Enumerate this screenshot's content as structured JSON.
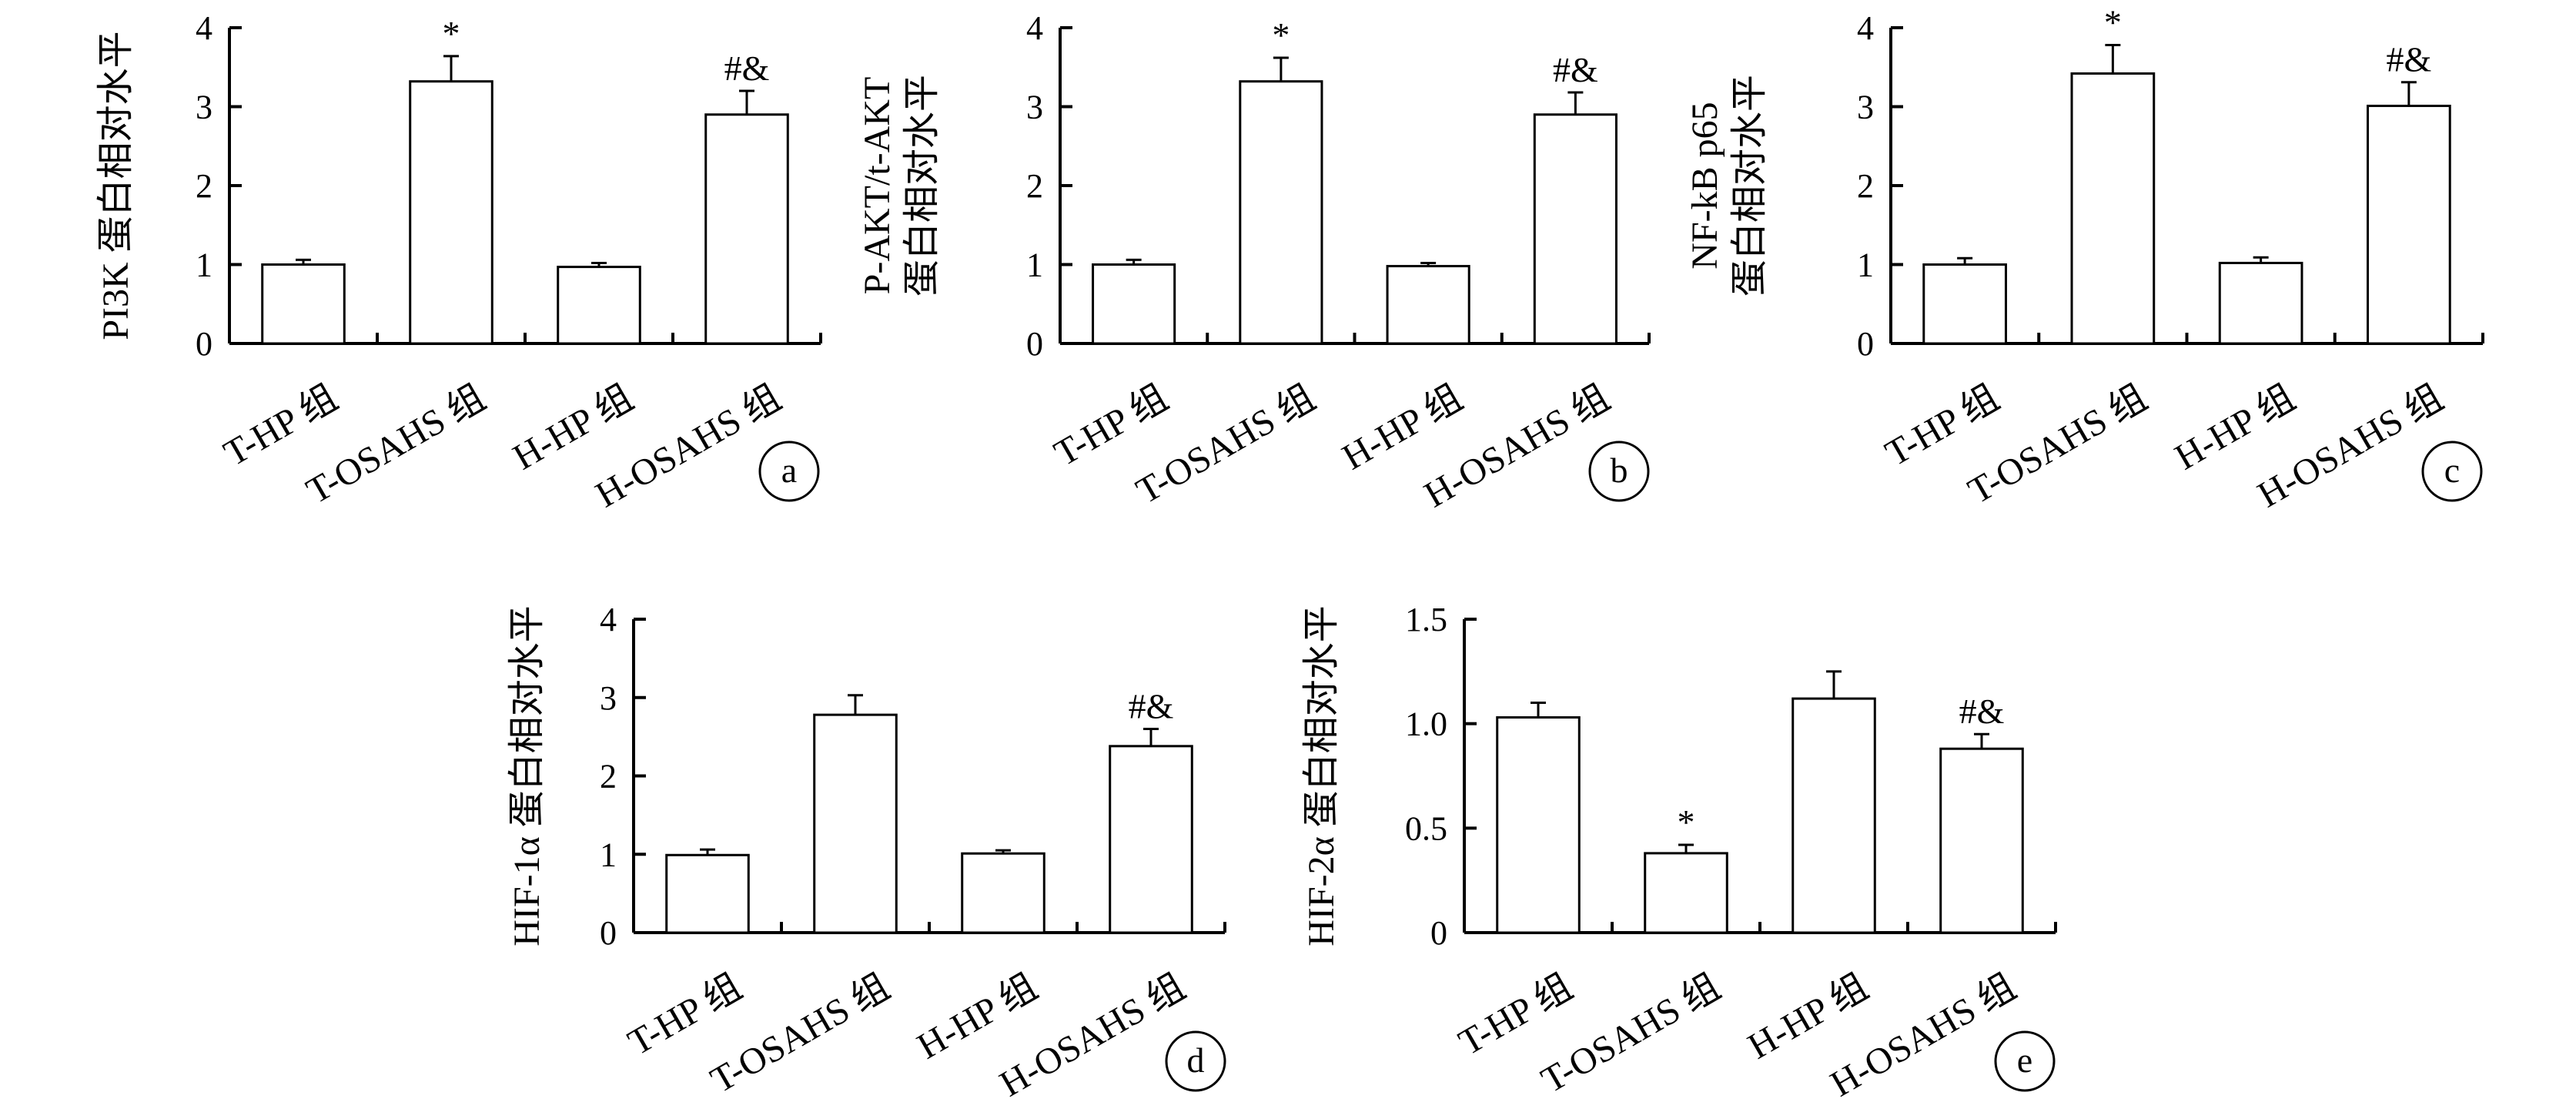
{
  "chart_data": [
    {
      "panel": "a",
      "type": "bar",
      "categories": [
        "T-HP 组",
        "T-OSAHS 组",
        "H-HP 组",
        "H-OSAHS 组"
      ],
      "values": [
        1.0,
        3.32,
        0.97,
        2.9
      ],
      "errors": [
        0.06,
        0.32,
        0.05,
        0.3
      ],
      "annotations": [
        "",
        "*",
        "",
        "#&"
      ],
      "ylabel": [
        "PI3K 蛋白相对水平"
      ],
      "ylim": [
        0,
        4
      ],
      "yticks": [
        "0",
        "1",
        "2",
        "3",
        "4"
      ],
      "tick_values": [
        0,
        1,
        2,
        3,
        4
      ]
    },
    {
      "panel": "b",
      "type": "bar",
      "categories": [
        "T-HP 组",
        "T-OSAHS 组",
        "H-HP 组",
        "H-OSAHS 组"
      ],
      "values": [
        1.0,
        3.32,
        0.98,
        2.9
      ],
      "errors": [
        0.06,
        0.3,
        0.04,
        0.28
      ],
      "annotations": [
        "",
        "*",
        "",
        "#&"
      ],
      "ylabel": [
        "P-AKT/t-AKT",
        "蛋白相对水平"
      ],
      "ylim": [
        0,
        4
      ],
      "yticks": [
        "0",
        "1",
        "2",
        "3",
        "4"
      ],
      "tick_values": [
        0,
        1,
        2,
        3,
        4
      ]
    },
    {
      "panel": "c",
      "type": "bar",
      "categories": [
        "T-HP 组",
        "T-OSAHS 组",
        "H-HP 组",
        "H-OSAHS 组"
      ],
      "values": [
        1.0,
        3.42,
        1.02,
        3.01
      ],
      "errors": [
        0.08,
        0.36,
        0.07,
        0.3
      ],
      "annotations": [
        "",
        "*",
        "",
        "#&"
      ],
      "ylabel": [
        "NF-kB p65",
        "蛋白相对水平"
      ],
      "ylim": [
        0,
        4
      ],
      "yticks": [
        "0",
        "1",
        "2",
        "3",
        "4"
      ],
      "tick_values": [
        0,
        1,
        2,
        3,
        4
      ]
    },
    {
      "panel": "d",
      "type": "bar",
      "categories": [
        "T-HP 组",
        "T-OSAHS 组",
        "H-HP 组",
        "H-OSAHS 组"
      ],
      "values": [
        0.99,
        2.78,
        1.01,
        2.38
      ],
      "errors": [
        0.07,
        0.25,
        0.04,
        0.22
      ],
      "annotations": [
        "",
        "",
        "",
        "#&"
      ],
      "ylabel": [
        "HIF-1α 蛋白相对水平"
      ],
      "ylim": [
        0,
        4
      ],
      "yticks": [
        "0",
        "1",
        "2",
        "3",
        "4"
      ],
      "tick_values": [
        0,
        1,
        2,
        3,
        4
      ]
    },
    {
      "panel": "e",
      "type": "bar",
      "categories": [
        "T-HP 组",
        "T-OSAHS 组",
        "H-HP 组",
        "H-OSAHS 组"
      ],
      "values": [
        1.03,
        0.38,
        1.12,
        0.88
      ],
      "errors": [
        0.07,
        0.04,
        0.13,
        0.07
      ],
      "annotations": [
        "",
        "*",
        "",
        "#&"
      ],
      "ylabel": [
        "HIF-2α 蛋白相对水平"
      ],
      "ylim": [
        0,
        1.5
      ],
      "yticks": [
        "0",
        "0.5",
        "1.0",
        "1.5"
      ],
      "tick_values": [
        0,
        0.5,
        1.0,
        1.5
      ]
    }
  ]
}
